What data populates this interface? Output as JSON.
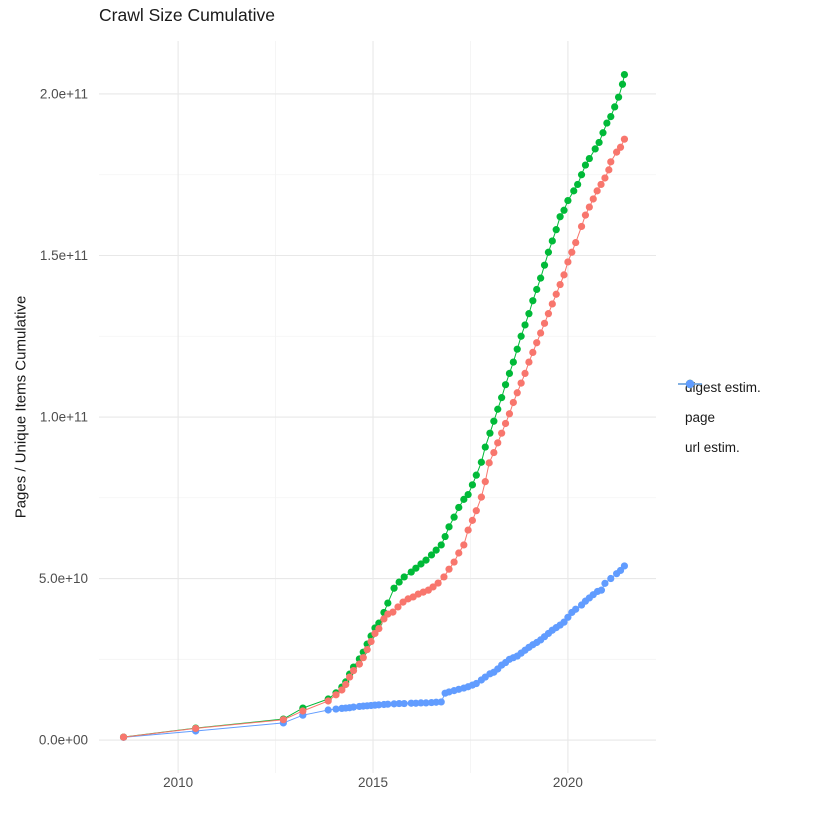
{
  "title": "Crawl Size Cumulative",
  "chart_data": {
    "type": "line",
    "title": "Crawl Size Cumulative",
    "xlabel": "",
    "ylabel": "Pages / Unique Items Cumulative",
    "xlim": [
      2007.97,
      2022.26
    ],
    "ylim": [
      -10200000000,
      216400000000
    ],
    "grid": "major+minor",
    "legend_position": "right",
    "x_ticks": [
      {
        "value": 2010,
        "label": "2010"
      },
      {
        "value": 2015,
        "label": "2015"
      },
      {
        "value": 2020,
        "label": "2020"
      }
    ],
    "x_minor_ticks": [
      2012.5,
      2017.5
    ],
    "y_ticks": [
      {
        "value": 0,
        "label": "0.0e+00"
      },
      {
        "value": 50000000000.0,
        "label": "5.0e+10"
      },
      {
        "value": 100000000000.0,
        "label": "1.0e+11"
      },
      {
        "value": 150000000000.0,
        "label": "1.5e+11"
      },
      {
        "value": 200000000000.0,
        "label": "2.0e+11"
      }
    ],
    "y_minor_ticks": [
      25000000000.0,
      75000000000.0,
      125000000000.0,
      175000000000.0
    ],
    "series": [
      {
        "name": "digest estim.",
        "color": "#F8766D",
        "points": [
          [
            2008.6,
            900000000.0
          ],
          [
            2010.45,
            3600000000.0
          ],
          [
            2012.7,
            6300000000.0
          ],
          [
            2013.2,
            9000000000.0
          ],
          [
            2013.85,
            12100000000.0
          ],
          [
            2014.05,
            14000000000.0
          ],
          [
            2014.2,
            15500000000.0
          ],
          [
            2014.3,
            17200000000.0
          ],
          [
            2014.4,
            19500000000.0
          ],
          [
            2014.5,
            21500000000.0
          ],
          [
            2014.65,
            23500000000.0
          ],
          [
            2014.75,
            25500000000.0
          ],
          [
            2014.85,
            28000000000.0
          ],
          [
            2014.95,
            30500000000.0
          ],
          [
            2015.05,
            33000000000.0
          ],
          [
            2015.15,
            34500000000.0
          ],
          [
            2015.28,
            37500000000.0
          ],
          [
            2015.38,
            39000000000.0
          ],
          [
            2015.51,
            39600000000.0
          ],
          [
            2015.64,
            41200000000.0
          ],
          [
            2015.77,
            42700000000.0
          ],
          [
            2015.9,
            43700000000.0
          ],
          [
            2016.03,
            44300000000.0
          ],
          [
            2016.16,
            45200000000.0
          ],
          [
            2016.29,
            45800000000.0
          ],
          [
            2016.42,
            46400000000.0
          ],
          [
            2016.54,
            47400000000.0
          ],
          [
            2016.67,
            48600000000.0
          ],
          [
            2016.82,
            50500000000.0
          ],
          [
            2016.95,
            52900000000.0
          ],
          [
            2017.08,
            55100000000.0
          ],
          [
            2017.2,
            57900000000.0
          ],
          [
            2017.33,
            60400000000.0
          ],
          [
            2017.44,
            65000000000.0
          ],
          [
            2017.55,
            68000000000.0
          ],
          [
            2017.65,
            71000000000.0
          ],
          [
            2017.78,
            75200000000.0
          ],
          [
            2017.88,
            80000000000.0
          ],
          [
            2017.98,
            85800000000.0
          ],
          [
            2018.1,
            89000000000.0
          ],
          [
            2018.2,
            92000000000.0
          ],
          [
            2018.3,
            95000000000.0
          ],
          [
            2018.4,
            98000000000.0
          ],
          [
            2018.5,
            101000000000.0
          ],
          [
            2018.6,
            104500000000.0
          ],
          [
            2018.7,
            107500000000.0
          ],
          [
            2018.8,
            110500000000.0
          ],
          [
            2018.9,
            113500000000.0
          ],
          [
            2019.0,
            117000000000.0
          ],
          [
            2019.1,
            120000000000.0
          ],
          [
            2019.2,
            123000000000.0
          ],
          [
            2019.3,
            126000000000.0
          ],
          [
            2019.4,
            129000000000.0
          ],
          [
            2019.5,
            132000000000.0
          ],
          [
            2019.6,
            135000000000.0
          ],
          [
            2019.7,
            138000000000.0
          ],
          [
            2019.8,
            141000000000.0
          ],
          [
            2019.9,
            144000000000.0
          ],
          [
            2020.0,
            148000000000.0
          ],
          [
            2020.1,
            151000000000.0
          ],
          [
            2020.2,
            154000000000.0
          ],
          [
            2020.35,
            159000000000.0
          ],
          [
            2020.45,
            162500000000.0
          ],
          [
            2020.55,
            165000000000.0
          ],
          [
            2020.65,
            167500000000.0
          ],
          [
            2020.75,
            170000000000.0
          ],
          [
            2020.85,
            172000000000.0
          ],
          [
            2020.95,
            174000000000.0
          ],
          [
            2021.05,
            176500000000.0
          ],
          [
            2021.1,
            179000000000.0
          ],
          [
            2021.25,
            182000000000.0
          ],
          [
            2021.35,
            183500000000.0
          ],
          [
            2021.45,
            186000000000.0
          ]
        ]
      },
      {
        "name": "page",
        "color": "#00BA38",
        "points": [
          [
            2008.6,
            930000000.0
          ],
          [
            2010.45,
            3700000000.0
          ],
          [
            2012.7,
            6500000000.0
          ],
          [
            2013.2,
            9900000000.0
          ],
          [
            2013.85,
            12700000000.0
          ],
          [
            2014.05,
            14600000000.0
          ],
          [
            2014.2,
            16400000000.0
          ],
          [
            2014.3,
            18000000000.0
          ],
          [
            2014.4,
            20400000000.0
          ],
          [
            2014.5,
            22600000000.0
          ],
          [
            2014.65,
            25100000000.0
          ],
          [
            2014.75,
            27200000000.0
          ],
          [
            2014.85,
            29700000000.0
          ],
          [
            2014.95,
            32200000000.0
          ],
          [
            2015.05,
            34700000000.0
          ],
          [
            2015.15,
            36200000000.0
          ],
          [
            2015.28,
            39500000000.0
          ],
          [
            2015.38,
            42400000000.0
          ],
          [
            2015.54,
            47000000000.0
          ],
          [
            2015.67,
            48900000000.0
          ],
          [
            2015.8,
            50500000000.0
          ],
          [
            2015.98,
            52000000000.0
          ],
          [
            2016.1,
            53200000000.0
          ],
          [
            2016.23,
            54500000000.0
          ],
          [
            2016.36,
            55700000000.0
          ],
          [
            2016.5,
            57300000000.0
          ],
          [
            2016.62,
            58800000000.0
          ],
          [
            2016.75,
            60400000000.0
          ],
          [
            2016.85,
            63000000000.0
          ],
          [
            2016.95,
            66000000000.0
          ],
          [
            2017.08,
            69000000000.0
          ],
          [
            2017.2,
            72000000000.0
          ],
          [
            2017.33,
            74500000000.0
          ],
          [
            2017.44,
            76000000000.0
          ],
          [
            2017.55,
            79000000000.0
          ],
          [
            2017.65,
            82000000000.0
          ],
          [
            2017.78,
            86000000000.0
          ],
          [
            2017.88,
            90700000000.0
          ],
          [
            2018.0,
            95000000000.0
          ],
          [
            2018.1,
            98700000000.0
          ],
          [
            2018.2,
            102400000000.0
          ],
          [
            2018.3,
            106000000000.0
          ],
          [
            2018.4,
            110000000000.0
          ],
          [
            2018.5,
            113500000000.0
          ],
          [
            2018.6,
            117000000000.0
          ],
          [
            2018.7,
            121000000000.0
          ],
          [
            2018.8,
            125000000000.0
          ],
          [
            2018.9,
            128500000000.0
          ],
          [
            2019.0,
            132000000000.0
          ],
          [
            2019.1,
            136000000000.0
          ],
          [
            2019.2,
            139500000000.0
          ],
          [
            2019.3,
            143000000000.0
          ],
          [
            2019.4,
            147000000000.0
          ],
          [
            2019.5,
            151000000000.0
          ],
          [
            2019.6,
            154500000000.0
          ],
          [
            2019.7,
            158000000000.0
          ],
          [
            2019.8,
            162000000000.0
          ],
          [
            2019.9,
            164000000000.0
          ],
          [
            2020.0,
            167000000000.0
          ],
          [
            2020.15,
            170000000000.0
          ],
          [
            2020.25,
            172000000000.0
          ],
          [
            2020.35,
            175000000000.0
          ],
          [
            2020.45,
            178000000000.0
          ],
          [
            2020.55,
            180000000000.0
          ],
          [
            2020.7,
            183000000000.0
          ],
          [
            2020.8,
            185000000000.0
          ],
          [
            2020.9,
            188000000000.0
          ],
          [
            2021.0,
            191000000000.0
          ],
          [
            2021.1,
            193000000000.0
          ],
          [
            2021.2,
            196000000000.0
          ],
          [
            2021.3,
            199000000000.0
          ],
          [
            2021.4,
            203000000000.0
          ],
          [
            2021.45,
            206000000000.0
          ]
        ]
      },
      {
        "name": "url estim.",
        "color": "#619CFF",
        "points": [
          [
            2008.6,
            850000000.0
          ],
          [
            2010.45,
            2800000000.0
          ],
          [
            2012.7,
            5300000000.0
          ],
          [
            2013.2,
            7700000000.0
          ],
          [
            2013.85,
            9300000000.0
          ],
          [
            2014.05,
            9600000000.0
          ],
          [
            2014.2,
            9800000000.0
          ],
          [
            2014.3,
            9900000000.0
          ],
          [
            2014.4,
            10000000000.0
          ],
          [
            2014.5,
            10200000000.0
          ],
          [
            2014.65,
            10400000000.0
          ],
          [
            2014.75,
            10500000000.0
          ],
          [
            2014.85,
            10600000000.0
          ],
          [
            2014.95,
            10700000000.0
          ],
          [
            2015.05,
            10800000000.0
          ],
          [
            2015.15,
            10900000000.0
          ],
          [
            2015.28,
            11000000000.0
          ],
          [
            2015.38,
            11100000000.0
          ],
          [
            2015.54,
            11200000000.0
          ],
          [
            2015.67,
            11300000000.0
          ],
          [
            2015.8,
            11300000000.0
          ],
          [
            2015.98,
            11400000000.0
          ],
          [
            2016.1,
            11400000000.0
          ],
          [
            2016.23,
            11500000000.0
          ],
          [
            2016.36,
            11500000000.0
          ],
          [
            2016.5,
            11600000000.0
          ],
          [
            2016.62,
            11700000000.0
          ],
          [
            2016.75,
            11800000000.0
          ],
          [
            2016.85,
            14500000000.0
          ],
          [
            2016.95,
            14900000000.0
          ],
          [
            2017.08,
            15300000000.0
          ],
          [
            2017.2,
            15700000000.0
          ],
          [
            2017.33,
            16100000000.0
          ],
          [
            2017.44,
            16500000000.0
          ],
          [
            2017.55,
            17000000000.0
          ],
          [
            2017.65,
            17500000000.0
          ],
          [
            2017.78,
            18600000000.0
          ],
          [
            2017.88,
            19500000000.0
          ],
          [
            2018.0,
            20500000000.0
          ],
          [
            2018.1,
            21000000000.0
          ],
          [
            2018.2,
            22000000000.0
          ],
          [
            2018.3,
            23200000000.0
          ],
          [
            2018.4,
            24000000000.0
          ],
          [
            2018.5,
            25000000000.0
          ],
          [
            2018.6,
            25500000000.0
          ],
          [
            2018.7,
            26000000000.0
          ],
          [
            2018.8,
            26900000000.0
          ],
          [
            2018.9,
            27800000000.0
          ],
          [
            2019.0,
            28700000000.0
          ],
          [
            2019.1,
            29500000000.0
          ],
          [
            2019.2,
            30200000000.0
          ],
          [
            2019.3,
            31000000000.0
          ],
          [
            2019.4,
            32000000000.0
          ],
          [
            2019.5,
            33000000000.0
          ],
          [
            2019.6,
            34000000000.0
          ],
          [
            2019.7,
            34800000000.0
          ],
          [
            2019.8,
            35600000000.0
          ],
          [
            2019.9,
            36500000000.0
          ],
          [
            2020.0,
            38000000000.0
          ],
          [
            2020.1,
            39500000000.0
          ],
          [
            2020.2,
            40500000000.0
          ],
          [
            2020.35,
            41800000000.0
          ],
          [
            2020.45,
            43000000000.0
          ],
          [
            2020.55,
            44000000000.0
          ],
          [
            2020.65,
            45000000000.0
          ],
          [
            2020.76,
            46000000000.0
          ],
          [
            2020.86,
            46400000000.0
          ],
          [
            2020.95,
            48500000000.0
          ],
          [
            2021.1,
            50000000000.0
          ],
          [
            2021.25,
            51500000000.0
          ],
          [
            2021.35,
            52500000000.0
          ],
          [
            2021.45,
            53900000000.0
          ]
        ]
      }
    ]
  },
  "style": {
    "major_grid_color": "#e8e8e8",
    "minor_grid_color": "#f3f3f3",
    "tick_label_color": "#4d4d4d",
    "point_radius": 3.6
  }
}
